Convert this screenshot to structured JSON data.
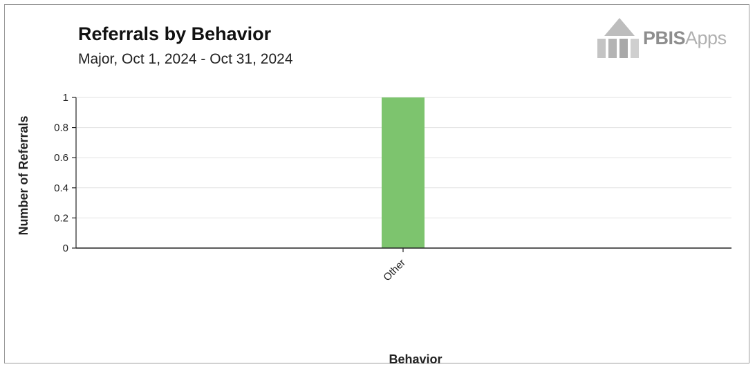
{
  "header": {
    "title": "Referrals by Behavior",
    "subtitle": "Major, Oct 1, 2024 - Oct 31, 2024"
  },
  "logo": {
    "icon": "pbis-building-icon",
    "text_bold": "PBIS",
    "text_light": "Apps"
  },
  "colors": {
    "bar": "#7dc46e",
    "grid": "#e2e2e2",
    "axis": "#222222"
  },
  "chart_data": {
    "type": "bar",
    "title": "Referrals by Behavior",
    "subtitle": "Major, Oct 1, 2024 - Oct 31, 2024",
    "xlabel": "Behavior",
    "ylabel": "Number of Referrals",
    "categories": [
      "Other"
    ],
    "values": [
      1
    ],
    "ylim": [
      0,
      1
    ],
    "yticks": [
      0,
      0.2,
      0.4,
      0.6,
      0.8,
      1
    ],
    "grid": true,
    "legend": "none"
  }
}
